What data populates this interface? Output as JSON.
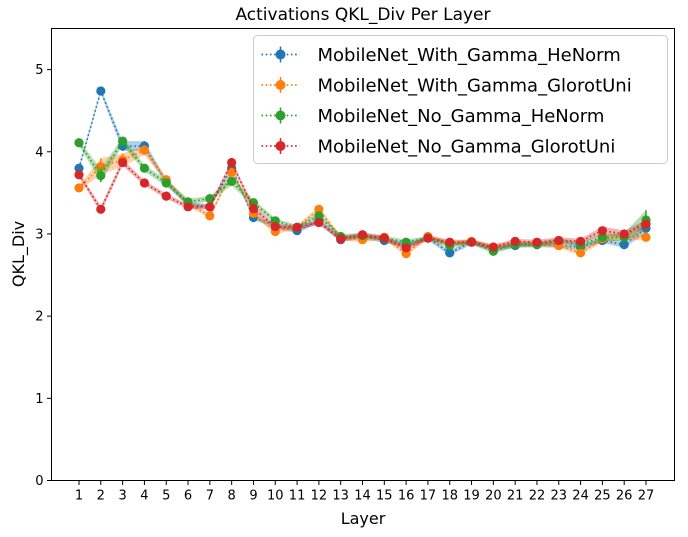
{
  "chart_data": {
    "type": "line",
    "title": "Activations QKL_Div Per Layer",
    "xlabel": "Layer",
    "ylabel": "QKL_Div",
    "x": [
      1,
      2,
      3,
      4,
      5,
      6,
      7,
      8,
      9,
      10,
      11,
      12,
      13,
      14,
      15,
      16,
      17,
      18,
      19,
      20,
      21,
      22,
      23,
      24,
      25,
      26,
      27
    ],
    "x_tick_labels": [
      "1",
      "2",
      "3",
      "4",
      "5",
      "6",
      "7",
      "8",
      "9",
      "10",
      "11",
      "12",
      "13",
      "14",
      "15",
      "16",
      "17",
      "18",
      "19",
      "20",
      "21",
      "22",
      "23",
      "24",
      "25",
      "26",
      "27"
    ],
    "ylim": [
      0,
      5.5
    ],
    "y_ticks": [
      0,
      1,
      2,
      3,
      4,
      5
    ],
    "y_tick_labels": [
      "0",
      "1",
      "2",
      "3",
      "4",
      "5"
    ],
    "legend_position": "top-right",
    "series": [
      {
        "name": "MobileNet_With_Gamma_HeNorm",
        "color": "#1f77b4",
        "values": [
          3.8,
          4.74,
          4.07,
          4.07,
          3.63,
          3.36,
          3.33,
          3.8,
          3.2,
          3.1,
          3.04,
          3.16,
          2.93,
          2.97,
          2.92,
          2.86,
          2.95,
          2.77,
          2.9,
          2.82,
          2.86,
          2.87,
          2.86,
          2.84,
          2.92,
          2.87,
          3.07
        ],
        "band": [
          0.03,
          0.03,
          0.06,
          0.06,
          0.03,
          0.03,
          0.03,
          0.03,
          0.03,
          0.03,
          0.03,
          0.03,
          0.03,
          0.03,
          0.03,
          0.03,
          0.03,
          0.03,
          0.03,
          0.03,
          0.03,
          0.03,
          0.03,
          0.03,
          0.03,
          0.04,
          0.06
        ]
      },
      {
        "name": "MobileNet_With_Gamma_GlorotUni",
        "color": "#ff7f0e",
        "values": [
          3.56,
          3.82,
          3.9,
          4.02,
          3.66,
          3.37,
          3.22,
          3.75,
          3.25,
          3.03,
          3.08,
          3.3,
          2.95,
          2.93,
          2.96,
          2.76,
          2.97,
          2.88,
          2.91,
          2.84,
          2.88,
          2.88,
          2.86,
          2.77,
          2.94,
          2.97,
          2.96
        ],
        "band": [
          0.03,
          0.1,
          0.08,
          0.06,
          0.03,
          0.03,
          0.03,
          0.03,
          0.03,
          0.03,
          0.03,
          0.03,
          0.03,
          0.03,
          0.03,
          0.03,
          0.03,
          0.03,
          0.03,
          0.03,
          0.03,
          0.03,
          0.03,
          0.03,
          0.04,
          0.04,
          0.04
        ]
      },
      {
        "name": "MobileNet_No_Gamma_HeNorm",
        "color": "#2ca02c",
        "values": [
          4.11,
          3.71,
          4.13,
          3.8,
          3.62,
          3.39,
          3.43,
          3.64,
          3.38,
          3.16,
          3.08,
          3.22,
          2.97,
          2.98,
          2.95,
          2.9,
          2.95,
          2.86,
          2.9,
          2.79,
          2.87,
          2.87,
          2.92,
          2.87,
          2.96,
          2.96,
          3.17
        ],
        "band": [
          0.03,
          0.08,
          0.05,
          0.04,
          0.04,
          0.04,
          0.03,
          0.05,
          0.04,
          0.03,
          0.03,
          0.03,
          0.03,
          0.03,
          0.03,
          0.03,
          0.03,
          0.03,
          0.03,
          0.03,
          0.03,
          0.03,
          0.03,
          0.03,
          0.04,
          0.05,
          0.12
        ]
      },
      {
        "name": "MobileNet_No_Gamma_GlorotUni",
        "color": "#d62728",
        "values": [
          3.72,
          3.3,
          3.87,
          3.62,
          3.46,
          3.33,
          3.33,
          3.87,
          3.31,
          3.09,
          3.08,
          3.14,
          2.94,
          2.99,
          2.95,
          2.83,
          2.95,
          2.9,
          2.9,
          2.84,
          2.91,
          2.9,
          2.92,
          2.91,
          3.04,
          3.0,
          3.12
        ],
        "band": [
          0.03,
          0.04,
          0.04,
          0.03,
          0.03,
          0.03,
          0.03,
          0.03,
          0.04,
          0.03,
          0.03,
          0.03,
          0.03,
          0.03,
          0.03,
          0.03,
          0.03,
          0.03,
          0.03,
          0.03,
          0.03,
          0.03,
          0.04,
          0.03,
          0.05,
          0.04,
          0.05
        ]
      }
    ]
  }
}
